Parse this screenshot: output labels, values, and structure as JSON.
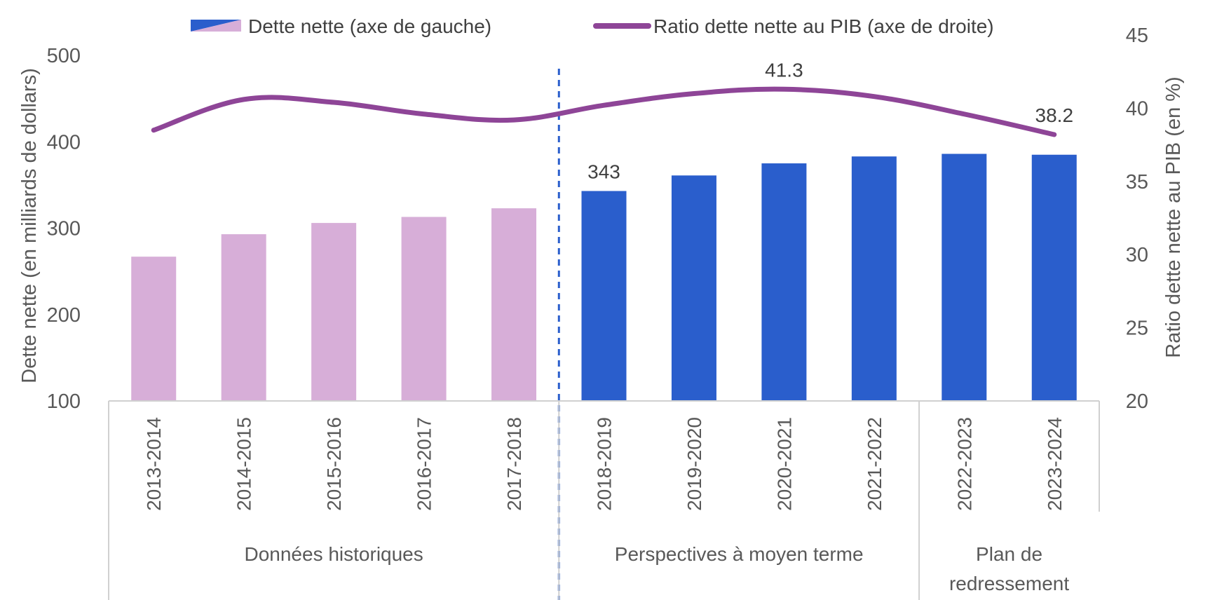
{
  "chart_data": {
    "type": "bar",
    "categories": [
      "2013-2014",
      "2014-2015",
      "2015-2016",
      "2016-2017",
      "2017-2018",
      "2018-2019",
      "2019-2020",
      "2020-2021",
      "2021-2022",
      "2022-2023",
      "2023-2024"
    ],
    "series": [
      {
        "name": "Dette nette (axe de gauche)",
        "type": "bar",
        "axis": "left",
        "values": [
          267,
          293,
          306,
          313,
          323,
          343,
          361,
          375,
          383,
          386,
          385
        ],
        "colors": [
          "#d7aed8",
          "#d7aed8",
          "#d7aed8",
          "#d7aed8",
          "#d7aed8",
          "#2a5ecc",
          "#2a5ecc",
          "#2a5ecc",
          "#2a5ecc",
          "#2a5ecc",
          "#2a5ecc"
        ],
        "data_labels": [
          {
            "index": 5,
            "text": "343"
          }
        ]
      },
      {
        "name": "Ratio dette nette au PIB (axe de droite)",
        "type": "line",
        "axis": "right",
        "values": [
          38.5,
          40.6,
          40.4,
          39.6,
          39.2,
          40.2,
          41.0,
          41.3,
          40.8,
          39.6,
          38.2
        ],
        "color": "#8e4597",
        "data_labels": [
          {
            "index": 7,
            "text": "41.3"
          },
          {
            "index": 10,
            "text": "38.2"
          }
        ]
      }
    ],
    "ylabel": "Dette nette (en milliards de dollars)",
    "y2label": "Ratio dette nette au PIB (en %)",
    "ylim": [
      100,
      500
    ],
    "y2lim": [
      20,
      45
    ],
    "yticks": [
      "100",
      "200",
      "300",
      "400",
      "500"
    ],
    "y2ticks": [
      "20",
      "25",
      "30",
      "35",
      "40",
      "45"
    ],
    "groups": [
      {
        "label": "Données historiques",
        "start": 0,
        "end": 4
      },
      {
        "label": "Perspectives à moyen terme",
        "start": 5,
        "end": 8
      },
      {
        "label": "Plan de\nredressement",
        "start": 9,
        "end": 10
      }
    ],
    "projection_divider_after_index": 4,
    "legend_position": "top",
    "grid": false,
    "colors": {
      "historical_bar": "#d7aed8",
      "projection_bar": "#2a5ecc",
      "line": "#8e4597",
      "divider": "#2a5ecc",
      "axis": "#d0d0d0"
    }
  }
}
